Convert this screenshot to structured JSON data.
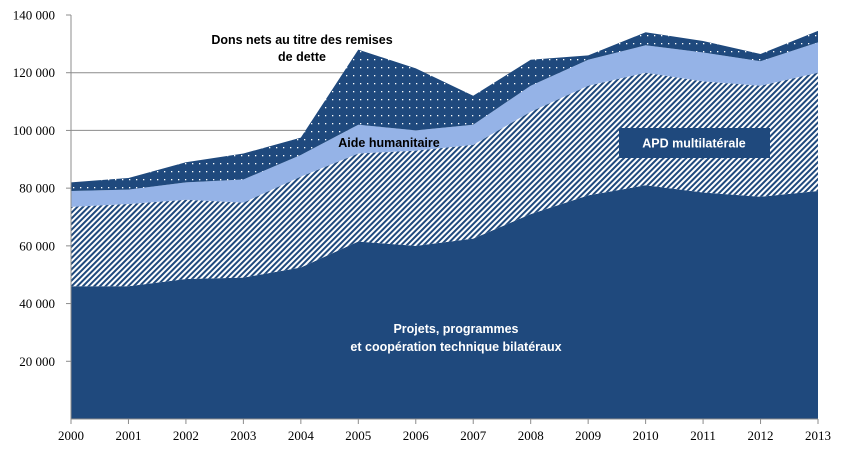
{
  "chart_data": {
    "type": "area",
    "stacked": true,
    "title": "",
    "xlabel": "",
    "ylabel": "",
    "x": [
      "2000",
      "2001",
      "2002",
      "2003",
      "2004",
      "2005",
      "2006",
      "2007",
      "2008",
      "2009",
      "2010",
      "2011",
      "2012",
      "2013"
    ],
    "ylim": [
      0,
      140000
    ],
    "yticks": [
      {
        "value": 20000,
        "label": "20 000"
      },
      {
        "value": 40000,
        "label": "40 000"
      },
      {
        "value": 60000,
        "label": "60 000"
      },
      {
        "value": 80000,
        "label": "80 000"
      },
      {
        "value": 100000,
        "label": "100 000"
      },
      {
        "value": 120000,
        "label": "120 000"
      },
      {
        "value": 140000,
        "label": "140 000"
      }
    ],
    "gridlines": [
      100000,
      120000
    ],
    "series": [
      {
        "name": "Projets, programmes et coopération technique bilatéraux",
        "pattern": "solid",
        "color": "#1f497d",
        "values": [
          46000,
          46000,
          48500,
          49000,
          52500,
          61500,
          60000,
          62500,
          71000,
          77500,
          81000,
          78500,
          77000,
          79000
        ]
      },
      {
        "name": "APD multilatérale",
        "pattern": "diagonal-hatch",
        "color": "#1f497d",
        "values": [
          27500,
          28500,
          27500,
          26000,
          31500,
          30500,
          33000,
          32500,
          35500,
          38000,
          39000,
          38500,
          38500,
          41000
        ]
      },
      {
        "name": "Aide humanitaire",
        "pattern": "solid",
        "color": "#95b3e7",
        "values": [
          5500,
          5000,
          6000,
          8000,
          7500,
          10000,
          7000,
          7000,
          9000,
          9000,
          9500,
          10000,
          8500,
          10500
        ]
      },
      {
        "name": "Dons nets au titre des remises de dette",
        "pattern": "dotted",
        "color": "#1f497d",
        "values": [
          3000,
          4000,
          7000,
          9000,
          6000,
          26000,
          21500,
          10000,
          9000,
          1500,
          4500,
          4000,
          2500,
          4000
        ]
      }
    ],
    "annotations": [
      {
        "id": "debt",
        "lines": [
          "Dons nets au titre des remises",
          "de dette"
        ],
        "color": "#000000"
      },
      {
        "id": "humanitarian",
        "lines": [
          "Aide humanitaire"
        ],
        "color": "#000000"
      },
      {
        "id": "multilateral",
        "lines": [
          "APD multilatérale"
        ],
        "color": "#ffffff",
        "boxed": true,
        "box_color": "#1f497d"
      },
      {
        "id": "bilateral",
        "lines": [
          "Projets, programmes",
          "et coopération technique bilatéraux"
        ],
        "color": "#ffffff"
      }
    ],
    "legend": "none (inline labels)"
  }
}
